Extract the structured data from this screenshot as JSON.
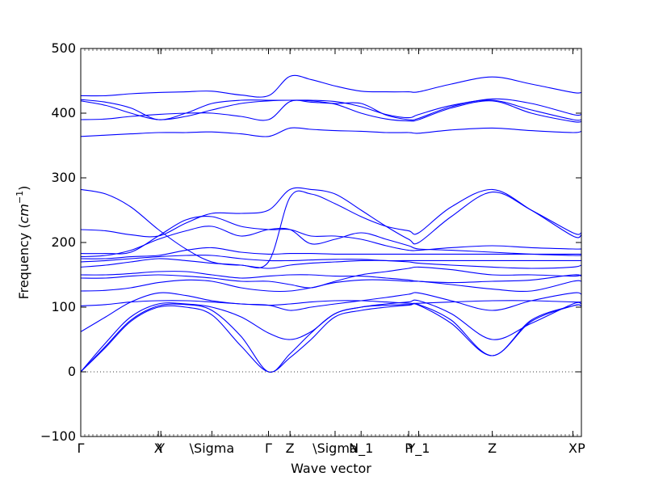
{
  "chart_data": {
    "type": "line",
    "title": "",
    "xlabel": "Wave vector",
    "ylabel": "Frequency (cm⁻¹)",
    "ylabel_plain": "Frequency (",
    "ylabel_unit": "cm",
    "ylabel_exp": "−1",
    "ylabel_close": ")",
    "xlim": [
      0,
      1
    ],
    "ylim": [
      -100,
      500
    ],
    "y_ticks": [
      -100,
      0,
      100,
      200,
      300,
      400,
      500
    ],
    "y_tick_labels": [
      "−100",
      "0",
      "100",
      "200",
      "300",
      "400",
      "500"
    ],
    "x_ticks": [
      {
        "x": 0.0,
        "label": "Γ"
      },
      {
        "x": 0.155,
        "label": "X"
      },
      {
        "x": 0.16,
        "label": "Y"
      },
      {
        "x": 0.262,
        "label": "\\Sigma"
      },
      {
        "x": 0.375,
        "label": "Γ"
      },
      {
        "x": 0.418,
        "label": "Z"
      },
      {
        "x": 0.508,
        "label": "\\Sigma"
      },
      {
        "x": 0.56,
        "label": "N_1"
      },
      {
        "x": 0.655,
        "label": "P"
      },
      {
        "x": 0.675,
        "label": "Y_1"
      },
      {
        "x": 0.822,
        "label": "Z"
      },
      {
        "x": 0.983,
        "label": "X"
      },
      {
        "x": 1.0,
        "label": "P"
      }
    ],
    "series_color": "#0000ff",
    "zero_line": {
      "y": 0,
      "style": "dotted",
      "color": "#000000"
    },
    "x": [
      0,
      0.05,
      0.1,
      0.155,
      0.21,
      0.262,
      0.32,
      0.375,
      0.418,
      0.46,
      0.508,
      0.56,
      0.61,
      0.655,
      0.675,
      0.74,
      0.822,
      0.9,
      0.983,
      1.0
    ],
    "series": [
      {
        "values": [
          427,
          427,
          430,
          432,
          433,
          434,
          428,
          427,
          457,
          452,
          442,
          434,
          433,
          433,
          433,
          445,
          456,
          445,
          432,
          432
        ]
      },
      {
        "values": [
          421,
          417,
          408,
          390,
          400,
          415,
          420,
          420,
          420,
          420,
          418,
          410,
          398,
          393,
          398,
          412,
          420,
          405,
          390,
          390
        ]
      },
      {
        "values": [
          419,
          412,
          400,
          390,
          395,
          405,
          415,
          419,
          420,
          419,
          414,
          400,
          391,
          388,
          390,
          408,
          419,
          400,
          387,
          387
        ]
      },
      {
        "values": [
          390,
          391,
          395,
          398,
          400,
          400,
          395,
          390,
          418,
          417,
          415,
          415,
          397,
          390,
          392,
          410,
          422,
          415,
          398,
          398
        ]
      },
      {
        "values": [
          364,
          366,
          368,
          370,
          370,
          371,
          368,
          364,
          377,
          375,
          373,
          372,
          370,
          370,
          369,
          374,
          377,
          373,
          370,
          372
        ]
      },
      {
        "values": [
          282,
          275,
          255,
          220,
          190,
          170,
          165,
          170,
          270,
          275,
          260,
          240,
          225,
          218,
          215,
          255,
          282,
          250,
          210,
          212
        ]
      },
      {
        "values": [
          220,
          218,
          212,
          210,
          230,
          245,
          245,
          250,
          282,
          282,
          275,
          250,
          225,
          205,
          200,
          240,
          278,
          250,
          215,
          215
        ]
      },
      {
        "values": [
          183,
          183,
          185,
          210,
          235,
          240,
          225,
          220,
          220,
          210,
          210,
          205,
          195,
          188,
          188,
          192,
          195,
          192,
          190,
          190
        ]
      },
      {
        "values": [
          178,
          180,
          188,
          205,
          218,
          225,
          210,
          220,
          220,
          198,
          205,
          215,
          205,
          195,
          190,
          188,
          185,
          182,
          180,
          180
        ]
      },
      {
        "values": [
          175,
          175,
          178,
          180,
          188,
          192,
          185,
          182,
          183,
          183,
          182,
          182,
          182,
          182,
          182,
          182,
          182,
          182,
          182,
          182
        ]
      },
      {
        "values": [
          170,
          172,
          175,
          178,
          180,
          180,
          175,
          172,
          172,
          173,
          174,
          174,
          172,
          172,
          172,
          172,
          172,
          172,
          172,
          172
        ]
      },
      {
        "values": [
          162,
          165,
          170,
          175,
          172,
          168,
          165,
          160,
          165,
          168,
          170,
          172,
          172,
          170,
          168,
          165,
          162,
          160,
          162,
          165
        ]
      },
      {
        "values": [
          150,
          150,
          152,
          155,
          155,
          150,
          145,
          148,
          150,
          150,
          148,
          148,
          145,
          142,
          140,
          138,
          140,
          142,
          150,
          148
        ]
      },
      {
        "values": [
          145,
          145,
          148,
          150,
          148,
          145,
          140,
          140,
          135,
          130,
          140,
          150,
          155,
          160,
          162,
          158,
          150,
          150,
          148,
          150
        ]
      },
      {
        "values": [
          125,
          126,
          130,
          138,
          142,
          140,
          130,
          125,
          125,
          130,
          138,
          142,
          142,
          140,
          140,
          135,
          128,
          125,
          140,
          140
        ]
      },
      {
        "values": [
          102,
          104,
          108,
          110,
          110,
          108,
          105,
          103,
          105,
          108,
          110,
          110,
          108,
          106,
          106,
          108,
          110,
          110,
          108,
          108
        ]
      },
      {
        "values": [
          62,
          85,
          108,
          122,
          118,
          110,
          105,
          103,
          95,
          100,
          105,
          110,
          115,
          120,
          122,
          110,
          95,
          110,
          122,
          120
        ]
      },
      {
        "values": [
          0,
          45,
          85,
          105,
          105,
          100,
          85,
          60,
          50,
          62,
          90,
          100,
          105,
          108,
          110,
          90,
          50,
          75,
          105,
          105
        ]
      },
      {
        "values": [
          0,
          40,
          80,
          102,
          104,
          95,
          55,
          0,
          28,
          60,
          90,
          100,
          103,
          104,
          104,
          80,
          25,
          80,
          102,
          102
        ]
      },
      {
        "values": [
          0,
          38,
          78,
          100,
          100,
          88,
          40,
          0,
          22,
          50,
          85,
          95,
          100,
          103,
          103,
          75,
          25,
          78,
          102,
          102
        ]
      }
    ]
  }
}
